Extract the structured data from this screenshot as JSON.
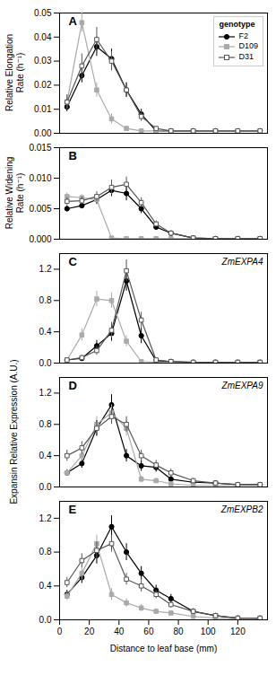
{
  "chart_data": [
    {
      "type": "line",
      "ylabel": "Relative Elongation\nRate (h⁻¹)",
      "annotations": [
        {
          "text": "A"
        }
      ],
      "x": [
        5,
        15,
        25,
        35,
        45,
        55,
        65,
        75,
        90,
        105,
        120,
        135
      ],
      "xlim": [
        0,
        140
      ],
      "ylim": [
        0,
        0.05
      ],
      "yticks": [
        {
          "value": 0,
          "label": "0.00"
        },
        0.01,
        0.02,
        0.03,
        0.04,
        0.05
      ],
      "tick_labels": "y",
      "legend": "upper right",
      "legend_title": "genotype",
      "series": [
        {
          "name": "F2",
          "color": "#000000",
          "marker": "circle",
          "values": [
            0.011,
            0.024,
            0.036,
            0.031,
            0.018,
            0.008,
            0.001,
            0.001,
            0.001,
            0.001,
            0.001,
            0.001
          ],
          "yerr": [
            0.002,
            0.003,
            0.004,
            0.004,
            0.003,
            0.002,
            0.0005,
            0.0005,
            0.0002,
            0.0002,
            0.0002,
            0.0002
          ]
        },
        {
          "name": "D109",
          "color": "#aaaaaa",
          "marker": "square",
          "values": [
            0.013,
            0.046,
            0.018,
            0.006,
            0.002,
            0.001,
            0.001,
            0.001,
            0.001,
            0.001,
            0.001,
            0.001
          ],
          "yerr": [
            0.003,
            0.004,
            0.003,
            0.002,
            0.001,
            0.0005,
            0.0005,
            0.0005,
            0.0002,
            0.0002,
            0.0002,
            0.0002
          ]
        },
        {
          "name": "D31",
          "color": "#555555",
          "marker": "open_square",
          "values": [
            0.013,
            0.028,
            0.039,
            0.03,
            0.018,
            0.007,
            0.002,
            0.001,
            0.001,
            0.001,
            0.001,
            0.001
          ],
          "yerr": [
            0.003,
            0.005,
            0.005,
            0.004,
            0.003,
            0.002,
            0.001,
            0.0005,
            0.0002,
            0.0002,
            0.0002,
            0.0002
          ]
        }
      ]
    },
    {
      "type": "line",
      "ylabel": "Relative Widening\nRate (h⁻¹)",
      "annotations": [
        {
          "text": "B"
        }
      ],
      "x": [
        5,
        15,
        25,
        35,
        45,
        55,
        65,
        75,
        90,
        105,
        120,
        135
      ],
      "xlim": [
        0,
        140
      ],
      "ylim": [
        0,
        0.015
      ],
      "yticks": [
        {
          "value": 0,
          "label": "0.000"
        },
        0.005,
        {
          "value": 0.01,
          "label": "0.010"
        },
        0.015
      ],
      "tick_labels": "y",
      "series": [
        {
          "name": "F2",
          "color": "#000000",
          "marker": "circle",
          "values": [
            0.005,
            0.0055,
            0.0065,
            0.008,
            0.0075,
            0.005,
            0.002,
            0.001,
            0.0002,
            0.0001,
            0.0001,
            0.0001
          ],
          "yerr": [
            0.0005,
            0.0005,
            0.0008,
            0.001,
            0.0012,
            0.0008,
            0.0005,
            0.0003,
            0.0001,
            0.0001,
            0.0001,
            0.0001
          ]
        },
        {
          "name": "D109",
          "color": "#aaaaaa",
          "marker": "square",
          "values": [
            0.007,
            0.0068,
            0.0065,
            0.0002,
            0.0001,
            0.0001,
            0.0001,
            0.0001,
            0.0001,
            0.0001,
            0.0001,
            0.0001
          ],
          "yerr": [
            0.0006,
            0.0005,
            0.0005,
            0.0001,
            0.0001,
            0.0001,
            0.0001,
            0.0001,
            0.0001,
            0.0001,
            0.0001,
            0.0001
          ]
        },
        {
          "name": "D31",
          "color": "#555555",
          "marker": "open_square",
          "values": [
            0.0062,
            0.0063,
            0.007,
            0.0085,
            0.009,
            0.006,
            0.0025,
            0.001,
            0.0002,
            0.0001,
            0.0001,
            0.0001
          ],
          "yerr": [
            0.0006,
            0.0006,
            0.0008,
            0.0012,
            0.0012,
            0.0008,
            0.0005,
            0.0003,
            0.0001,
            0.0001,
            0.0001,
            0.0001
          ]
        }
      ]
    },
    {
      "type": "line",
      "annotations": [
        {
          "text": "C"
        },
        {
          "text": "ZmEXPA4"
        }
      ],
      "x": [
        5,
        15,
        25,
        35,
        45,
        55,
        65,
        75,
        90,
        105,
        120,
        135
      ],
      "xlim": [
        0,
        140
      ],
      "ylim": [
        0,
        1.4
      ],
      "yticks": [
        {
          "value": 0,
          "label": "0.0"
        },
        0.4,
        0.8,
        1.2
      ],
      "tick_labels": "y",
      "series": [
        {
          "name": "F2",
          "color": "#000000",
          "marker": "circle",
          "values": [
            0.04,
            0.06,
            0.22,
            0.38,
            1.05,
            0.35,
            0.03,
            0.02,
            0.01,
            0.01,
            0.01,
            0.01
          ],
          "yerr": [
            0.02,
            0.03,
            0.07,
            0.1,
            0.13,
            0.1,
            0.02,
            0.01,
            0.005,
            0.005,
            0.005,
            0.005
          ]
        },
        {
          "name": "D109",
          "color": "#aaaaaa",
          "marker": "square",
          "values": [
            0.04,
            0.36,
            0.82,
            0.8,
            0.28,
            0.02,
            0.01,
            0.01,
            0.01,
            0.01,
            0.01,
            0.01
          ],
          "yerr": [
            0.02,
            0.08,
            0.1,
            0.1,
            0.07,
            0.01,
            0.005,
            0.005,
            0.005,
            0.005,
            0.005,
            0.005
          ]
        },
        {
          "name": "D31",
          "color": "#555555",
          "marker": "open_square",
          "values": [
            0.04,
            0.07,
            0.16,
            0.42,
            1.18,
            0.55,
            0.04,
            0.02,
            0.01,
            0.01,
            0.01,
            0.01
          ],
          "yerr": [
            0.02,
            0.03,
            0.06,
            0.1,
            0.14,
            0.1,
            0.02,
            0.01,
            0.005,
            0.005,
            0.005,
            0.005
          ]
        }
      ]
    },
    {
      "type": "line",
      "ylabel": "Expansin Relative Expression (A.U.)",
      "annotations": [
        {
          "text": "D"
        },
        {
          "text": "ZmEXPA9"
        }
      ],
      "x": [
        5,
        15,
        25,
        35,
        45,
        55,
        65,
        75,
        90,
        105,
        120,
        135
      ],
      "xlim": [
        0,
        140
      ],
      "ylim": [
        0,
        1.4
      ],
      "yticks": [
        {
          "value": 0,
          "label": "0.0"
        },
        0.4,
        0.8,
        1.2
      ],
      "tick_labels": "y",
      "series": [
        {
          "name": "F2",
          "color": "#000000",
          "marker": "circle",
          "values": [
            0.18,
            0.3,
            0.75,
            1.05,
            0.4,
            0.27,
            0.25,
            0.1,
            0.06,
            0.05,
            0.03,
            0.03
          ],
          "yerr": [
            0.04,
            0.06,
            0.1,
            0.13,
            0.08,
            0.07,
            0.06,
            0.04,
            0.02,
            0.02,
            0.01,
            0.01
          ]
        },
        {
          "name": "D109",
          "color": "#aaaaaa",
          "marker": "square",
          "values": [
            0.18,
            0.4,
            0.8,
            0.95,
            0.75,
            0.1,
            0.08,
            0.04,
            0.02,
            0.02,
            0.02,
            0.02
          ],
          "yerr": [
            0.04,
            0.07,
            0.1,
            0.1,
            0.1,
            0.04,
            0.03,
            0.02,
            0.01,
            0.01,
            0.01,
            0.01
          ]
        },
        {
          "name": "D31",
          "color": "#555555",
          "marker": "open_square",
          "values": [
            0.4,
            0.5,
            0.75,
            0.9,
            0.8,
            0.4,
            0.28,
            0.18,
            0.08,
            0.05,
            0.03,
            0.03
          ],
          "yerr": [
            0.07,
            0.08,
            0.1,
            0.1,
            0.1,
            0.07,
            0.06,
            0.05,
            0.03,
            0.02,
            0.01,
            0.01
          ]
        }
      ]
    },
    {
      "type": "line",
      "xlabel": "Distance to leaf base (mm)",
      "annotations": [
        {
          "text": "E"
        },
        {
          "text": "ZmEXPB2"
        }
      ],
      "x": [
        5,
        15,
        25,
        35,
        45,
        55,
        65,
        75,
        90,
        105,
        120,
        135
      ],
      "xlim": [
        0,
        140
      ],
      "xticks": [
        0,
        20,
        40,
        60,
        80,
        100,
        120
      ],
      "ylim": [
        0,
        1.4
      ],
      "yticks": [
        {
          "value": 0,
          "label": "0.0"
        },
        0.4,
        0.8,
        1.2
      ],
      "series": [
        {
          "name": "F2",
          "color": "#000000",
          "marker": "circle",
          "values": [
            0.3,
            0.5,
            0.76,
            1.1,
            0.8,
            0.55,
            0.35,
            0.25,
            0.1,
            0.05,
            0.02,
            0.02
          ],
          "yerr": [
            0.05,
            0.07,
            0.1,
            0.13,
            0.1,
            0.08,
            0.06,
            0.05,
            0.03,
            0.02,
            0.01,
            0.01
          ]
        },
        {
          "name": "D109",
          "color": "#aaaaaa",
          "marker": "square",
          "values": [
            0.28,
            0.55,
            0.9,
            0.3,
            0.2,
            0.14,
            0.1,
            0.08,
            0.04,
            0.02,
            0.01,
            0.01
          ],
          "yerr": [
            0.05,
            0.08,
            0.1,
            0.07,
            0.05,
            0.04,
            0.03,
            0.02,
            0.01,
            0.01,
            0.005,
            0.005
          ]
        },
        {
          "name": "D31",
          "color": "#555555",
          "marker": "open_square",
          "values": [
            0.44,
            0.7,
            0.82,
            0.9,
            0.48,
            0.4,
            0.3,
            0.18,
            0.1,
            0.05,
            0.02,
            0.02
          ],
          "yerr": [
            0.06,
            0.08,
            0.1,
            0.1,
            0.07,
            0.07,
            0.05,
            0.04,
            0.03,
            0.02,
            0.01,
            0.01
          ]
        }
      ]
    }
  ]
}
